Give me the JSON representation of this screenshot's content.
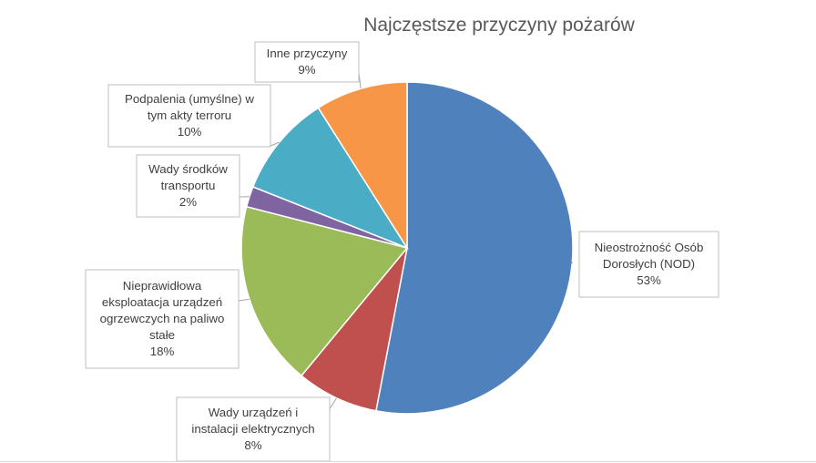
{
  "chart_data": {
    "type": "pie",
    "title": "Najczęstsze przyczyny pożarów",
    "slices": [
      {
        "name": "Nieostrożność Osób Dorosłych (NOD)",
        "value": 53,
        "value_label": "53%",
        "color": "#4f81bd",
        "label_lines": [
          "Nieostrożność Osób",
          "Dorosłych (NOD)"
        ]
      },
      {
        "name": "Wady urządzeń i instalacji elektrycznych",
        "value": 8,
        "value_label": "8%",
        "color": "#c0504d",
        "label_lines": [
          "Wady urządzeń i",
          "instalacji elektrycznych"
        ]
      },
      {
        "name": "Nieprawidłowa eksploatacja urządzeń ogrzewczych na paliwo stałe",
        "value": 18,
        "value_label": "18%",
        "color": "#9bbb59",
        "label_lines": [
          "Nieprawidłowa",
          "eksploatacja urządzeń",
          "ogrzewczych na paliwo",
          "stałe"
        ]
      },
      {
        "name": "Wady środków transportu",
        "value": 2,
        "value_label": "2%",
        "color": "#8064a2",
        "label_lines": [
          "Wady środków",
          "transportu"
        ]
      },
      {
        "name": "Podpalenia (umyślne) w tym akty terroru",
        "value": 10,
        "value_label": "10%",
        "color": "#4bacc6",
        "label_lines": [
          "Podpalenia (umyślne) w",
          "tym akty terroru"
        ]
      },
      {
        "name": "Inne przyczyny",
        "value": 9,
        "value_label": "9%",
        "color": "#f79646",
        "label_lines": [
          "Inne przyczyny"
        ]
      }
    ]
  }
}
